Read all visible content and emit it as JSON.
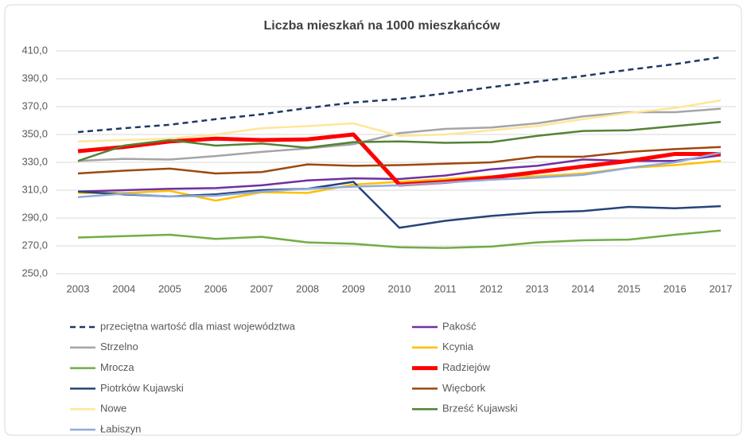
{
  "chart_data": {
    "type": "line",
    "title": "Liczba mieszkań na 1000 mieszkańców",
    "categories": [
      "2003",
      "2004",
      "2005",
      "2006",
      "2007",
      "2008",
      "2009",
      "2010",
      "2011",
      "2012",
      "2013",
      "2014",
      "2015",
      "2016",
      "2017"
    ],
    "ylim": [
      250,
      410
    ],
    "yticks": [
      {
        "value": 250,
        "label": "250,0"
      },
      {
        "value": 270,
        "label": "270,0"
      },
      {
        "value": 290,
        "label": "290,0"
      },
      {
        "value": 310,
        "label": "310,0"
      },
      {
        "value": 330,
        "label": "330,0"
      },
      {
        "value": 350,
        "label": "350,0"
      },
      {
        "value": 370,
        "label": "370,0"
      },
      {
        "value": 390,
        "label": "390,0"
      },
      {
        "value": 410,
        "label": "410,0"
      }
    ],
    "grid": true,
    "legend": "bottom",
    "series": [
      {
        "name": "przeciętna wartość dla miast województwa",
        "color": "#1f3864",
        "line_style": "dashed",
        "values": [
          351.7,
          354.5,
          357,
          361,
          364.5,
          369,
          373,
          375.5,
          379.5,
          384,
          388,
          392,
          396.5,
          400.5,
          405.5
        ]
      },
      {
        "name": "Pakość",
        "color": "#7030a0",
        "values": [
          309,
          310,
          311,
          311.5,
          313.5,
          317,
          318.5,
          318,
          320.5,
          325,
          327.5,
          332,
          331,
          331,
          335
        ]
      },
      {
        "name": "Strzelno",
        "color": "#a5a5a5",
        "values": [
          331,
          332.5,
          332,
          334.5,
          337.5,
          340,
          343,
          351,
          354,
          355,
          358,
          363,
          366,
          366,
          368.5
        ]
      },
      {
        "name": "Kcynia",
        "color": "#ffc000",
        "values": [
          308,
          308,
          309.5,
          302.5,
          308.5,
          308,
          314,
          316,
          318,
          320,
          320,
          322,
          326,
          328,
          331
        ]
      },
      {
        "name": "Mrocza",
        "color": "#70ad47",
        "values": [
          276,
          277,
          278,
          275,
          276.5,
          272.5,
          271.5,
          269,
          268.5,
          269.5,
          272.5,
          274,
          274.5,
          278,
          281
        ]
      },
      {
        "name": "Radziejów",
        "color": "#ff0000",
        "line_width": 5,
        "values": [
          338,
          341,
          345,
          347,
          346,
          346.5,
          350,
          314,
          316,
          319,
          323,
          327,
          331,
          336,
          336
        ]
      },
      {
        "name": "Piotrków Kujawski",
        "color": "#264478",
        "values": [
          309,
          307,
          305.5,
          307,
          310,
          311,
          316,
          283,
          288,
          291.5,
          294,
          295,
          298,
          297,
          298.5
        ]
      },
      {
        "name": "Więcbork",
        "color": "#9e480e",
        "values": [
          322,
          324,
          325.5,
          322,
          323,
          328.5,
          327.5,
          328,
          329,
          330,
          334,
          334,
          337.5,
          339.5,
          341
        ]
      },
      {
        "name": "Nowe",
        "color": "#ffe699",
        "values": [
          345,
          346,
          347,
          350,
          354.5,
          356,
          358,
          349,
          350,
          353,
          356,
          361,
          365.5,
          369,
          374.5
        ]
      },
      {
        "name": "Brześć Kujawski",
        "color": "#548235",
        "values": [
          331,
          342,
          346,
          342,
          343.5,
          340.5,
          344.5,
          345,
          344,
          344.5,
          349,
          352.5,
          353,
          356,
          359
        ]
      },
      {
        "name": "Łabiszyn",
        "color": "#8faadc",
        "values": [
          305,
          307.5,
          305.5,
          306,
          309,
          311,
          312.5,
          313.5,
          315.5,
          317.5,
          319,
          321,
          326,
          330,
          337
        ]
      }
    ]
  }
}
